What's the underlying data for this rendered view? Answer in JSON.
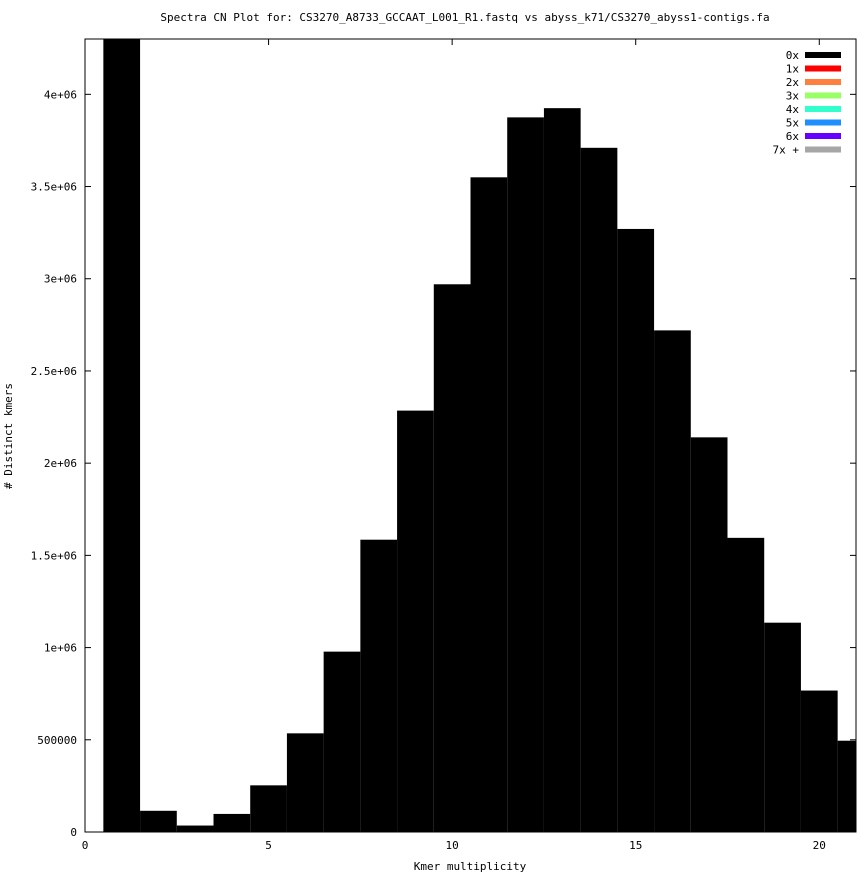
{
  "chart_data": {
    "type": "bar",
    "title": "Spectra CN Plot for: CS3270_A8733_GCCAAT_L001_R1.fastq  vs abyss_k71/CS3270_abyss1-contigs.fa",
    "xlabel": "Kmer multiplicity",
    "ylabel": "# Distinct kmers",
    "xlim": [
      0,
      21
    ],
    "ylim": [
      0,
      4300000
    ],
    "x_ticks": [
      0,
      5,
      10,
      15,
      20
    ],
    "x_tick_labels": [
      "0",
      "5",
      "10",
      "15",
      "20"
    ],
    "y_ticks": [
      0,
      500000,
      1000000,
      1500000,
      2000000,
      2500000,
      3000000,
      3500000,
      4000000
    ],
    "y_tick_labels": [
      "0",
      "500000",
      "1e+06",
      "1.5e+06",
      "2e+06",
      "2.5e+06",
      "3e+06",
      "3.5e+06",
      "4e+06"
    ],
    "legend_position": "top-right",
    "legend": [
      {
        "label": "0x",
        "color": "#000000"
      },
      {
        "label": "1x",
        "color": "#ff0000"
      },
      {
        "label": "2x",
        "color": "#ff7f3f"
      },
      {
        "label": "3x",
        "color": "#99ff66"
      },
      {
        "label": "4x",
        "color": "#33ffcc"
      },
      {
        "label": "5x",
        "color": "#1f8fff"
      },
      {
        "label": "6x",
        "color": "#6600ff"
      },
      {
        "label": "7x +",
        "color": "#a6a6a6"
      }
    ],
    "series": [
      {
        "name": "0x",
        "color": "#000000",
        "x": [
          1,
          2,
          3,
          4,
          5,
          6,
          7,
          8,
          9,
          10,
          11,
          12,
          13,
          14,
          15,
          16,
          17,
          18,
          19,
          20,
          21
        ],
        "values": [
          4300000,
          115000,
          35000,
          98000,
          253000,
          535000,
          978000,
          1585000,
          2285000,
          2970000,
          3550000,
          3875000,
          3925000,
          3710000,
          3270000,
          2720000,
          2140000,
          1595000,
          1135000,
          767000,
          495000
        ]
      }
    ]
  }
}
